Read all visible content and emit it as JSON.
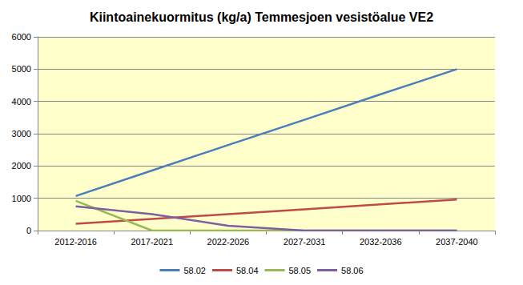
{
  "chart_data": {
    "type": "line",
    "title": "Kiintoainekuormitus (kg/a) Temmesjoen vesistöalue VE2",
    "categories": [
      "2012-2016",
      "2017-2021",
      "2022-2026",
      "2027-2031",
      "2032-2036",
      "2037-2040"
    ],
    "series": [
      {
        "name": "58.02",
        "color": "#4a7ebb",
        "values": [
          1070,
          1860,
          2650,
          3430,
          4220,
          5000
        ]
      },
      {
        "name": "58.04",
        "color": "#be4b48",
        "values": [
          210,
          360,
          510,
          660,
          810,
          960
        ]
      },
      {
        "name": "58.05",
        "color": "#98b954",
        "values": [
          920,
          0,
          0,
          0,
          0,
          0
        ]
      },
      {
        "name": "58.06",
        "color": "#7d60a0",
        "values": [
          750,
          510,
          150,
          0,
          0,
          0
        ]
      }
    ],
    "ylim": [
      0,
      6000
    ],
    "yticks": [
      0,
      1000,
      2000,
      3000,
      4000,
      5000,
      6000
    ],
    "grid": true,
    "legend": "bottom",
    "marker": "none",
    "line_style": "solid"
  }
}
